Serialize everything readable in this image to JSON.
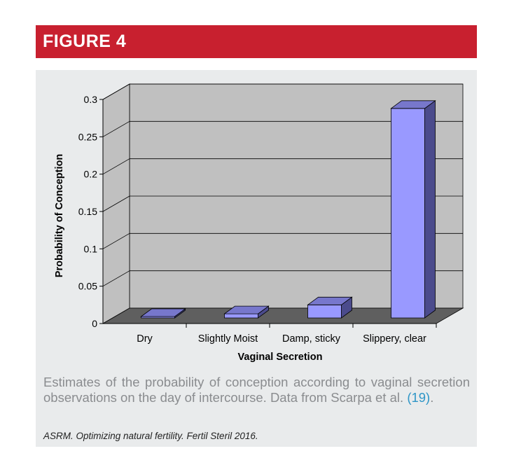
{
  "figure_label": "FIGURE 4",
  "caption_text": "Estimates of the probability of conception according to vaginal secretion observations on the day of intercourse. Data from Scarpa et al. ",
  "caption_ref": "(19)",
  "caption_end": ".",
  "source": "ASRM. Optimizing natural fertility. Fertil Steril 2016.",
  "colors": {
    "header": "#c8202f",
    "bar_front": "#9999ff",
    "bar_top": "#7777cc",
    "bar_side": "#4b4b8c",
    "wall": "#c0c0c0",
    "floor": "#5f5f5f",
    "caption": "#8a8c8f",
    "reference": "#2f96c7"
  },
  "chart_data": {
    "type": "bar",
    "style": "3d",
    "categories": [
      "Dry",
      "Slightly Moist",
      "Damp, sticky",
      "Slippery, clear"
    ],
    "values": [
      0.003,
      0.013,
      0.025,
      0.288
    ],
    "xlabel": "Vaginal Secretion",
    "ylabel": "Probability of Conception",
    "ylim": [
      0,
      0.3
    ],
    "yticks": [
      "0",
      "0.05",
      "0.1",
      "0.15",
      "0.2",
      "0.25",
      "0.3"
    ],
    "grid": true,
    "legend": "none"
  }
}
